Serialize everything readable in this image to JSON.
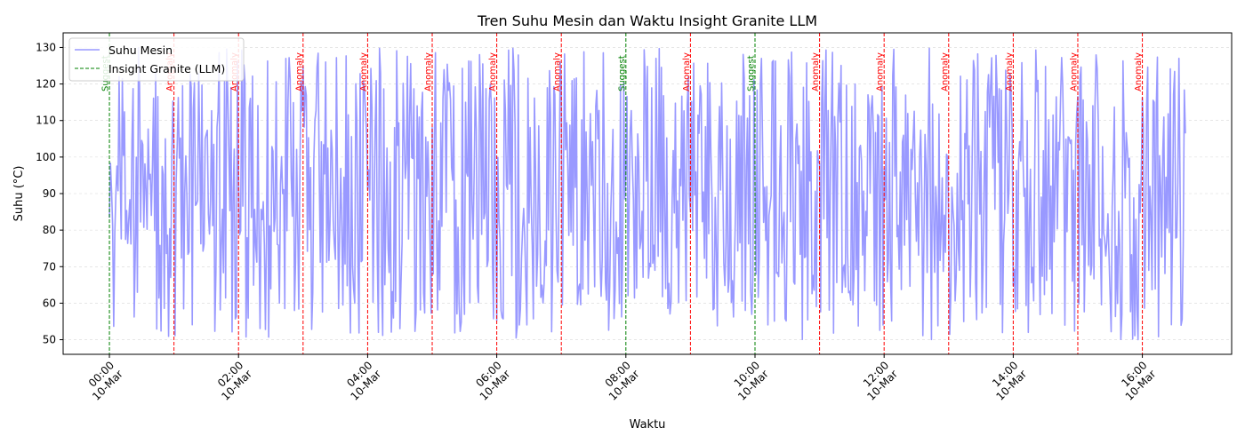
{
  "chart_data": {
    "type": "line",
    "title": "Tren Suhu Mesin dan Waktu Insight Granite LLM",
    "xlabel": "Waktu",
    "ylabel": "Suhu (°C)",
    "x_range": [
      "2024-03-10T00:00",
      "2024-03-10T16:40"
    ],
    "x_display_range": [
      "2024-03-09T23:17",
      "2024-03-10T17:23"
    ],
    "ylim": [
      46,
      134
    ],
    "x_ticks": [
      {
        "t": "2024-03-10T00:00",
        "label": [
          "00:00",
          "10-Mar"
        ]
      },
      {
        "t": "2024-03-10T02:00",
        "label": [
          "02:00",
          "10-Mar"
        ]
      },
      {
        "t": "2024-03-10T04:00",
        "label": [
          "04:00",
          "10-Mar"
        ]
      },
      {
        "t": "2024-03-10T06:00",
        "label": [
          "06:00",
          "10-Mar"
        ]
      },
      {
        "t": "2024-03-10T08:00",
        "label": [
          "08:00",
          "10-Mar"
        ]
      },
      {
        "t": "2024-03-10T10:00",
        "label": [
          "10:00",
          "10-Mar"
        ]
      },
      {
        "t": "2024-03-10T12:00",
        "label": [
          "12:00",
          "10-Mar"
        ]
      },
      {
        "t": "2024-03-10T14:00",
        "label": [
          "14:00",
          "10-Mar"
        ]
      },
      {
        "t": "2024-03-10T16:00",
        "label": [
          "16:00",
          "10-Mar"
        ]
      }
    ],
    "y_ticks": [
      50,
      60,
      70,
      80,
      90,
      100,
      110,
      120,
      130
    ],
    "grid": true,
    "legend_position": "upper-left",
    "series": [
      {
        "name": "Suhu Mesin",
        "color": "#9999ff",
        "style": "line",
        "sampling": "1 reading per minute from 00:00 to 16:40, roughly uniform between 50 and 130 °C",
        "x_start": "2024-03-10T00:00",
        "x_step_minutes": 1,
        "count": 1001,
        "y_min": 50,
        "y_max": 130
      },
      {
        "name": "Insight Granite (LLM)",
        "color_anomaly": "#ff0000",
        "color_suggest": "#008000",
        "style": "dashed-vertical",
        "events": [
          {
            "t": "2024-03-10T00:00",
            "type": "suggest",
            "label": "Suggest"
          },
          {
            "t": "2024-03-10T01:00",
            "type": "anomaly",
            "label": "Anomaly"
          },
          {
            "t": "2024-03-10T02:00",
            "type": "anomaly",
            "label": "Anomaly"
          },
          {
            "t": "2024-03-10T03:00",
            "type": "anomaly",
            "label": "Anomaly"
          },
          {
            "t": "2024-03-10T04:00",
            "type": "anomaly",
            "label": "Anomaly"
          },
          {
            "t": "2024-03-10T05:00",
            "type": "anomaly",
            "label": "Anomaly"
          },
          {
            "t": "2024-03-10T06:00",
            "type": "anomaly",
            "label": "Anomaly"
          },
          {
            "t": "2024-03-10T07:00",
            "type": "anomaly",
            "label": "Anomaly"
          },
          {
            "t": "2024-03-10T08:00",
            "type": "suggest",
            "label": "Suggest"
          },
          {
            "t": "2024-03-10T09:00",
            "type": "anomaly",
            "label": "Anomaly"
          },
          {
            "t": "2024-03-10T10:00",
            "type": "suggest",
            "label": "Suggest"
          },
          {
            "t": "2024-03-10T11:00",
            "type": "anomaly",
            "label": "Anomaly"
          },
          {
            "t": "2024-03-10T12:00",
            "type": "anomaly",
            "label": "Anomaly"
          },
          {
            "t": "2024-03-10T13:00",
            "type": "anomaly",
            "label": "Anomaly"
          },
          {
            "t": "2024-03-10T14:00",
            "type": "anomaly",
            "label": "Anomaly"
          },
          {
            "t": "2024-03-10T15:00",
            "type": "anomaly",
            "label": "Anomaly"
          },
          {
            "t": "2024-03-10T16:00",
            "type": "anomaly",
            "label": "Anomaly"
          }
        ]
      }
    ]
  }
}
